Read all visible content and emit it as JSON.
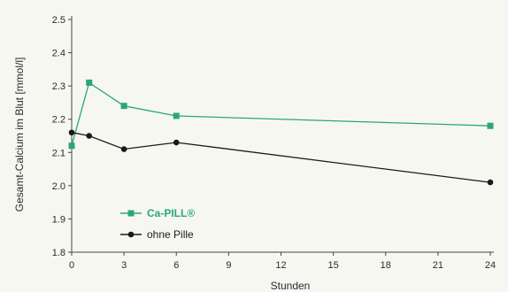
{
  "chart_data": {
    "type": "line",
    "xlabel": "Stunden",
    "ylabel": "Gesamt-Calcium im Blut [mmol/l]",
    "xlim": [
      0,
      24
    ],
    "ylim": [
      1.8,
      2.5
    ],
    "xticks": [
      0,
      3,
      6,
      9,
      12,
      15,
      18,
      21,
      24
    ],
    "yticks": [
      1.8,
      1.9,
      2.0,
      2.1,
      2.2,
      2.3,
      2.4,
      2.5
    ],
    "grid": false,
    "legend_position": "bottom-left",
    "series": [
      {
        "name": "Ca-PILL®",
        "color": "#2aa77a",
        "marker": "square",
        "x": [
          0,
          1,
          3,
          6,
          24
        ],
        "y": [
          2.12,
          2.31,
          2.24,
          2.21,
          2.18
        ]
      },
      {
        "name": "ohne Pille",
        "color": "#1a1a1a",
        "marker": "circle",
        "x": [
          0,
          1,
          3,
          6,
          24
        ],
        "y": [
          2.16,
          2.15,
          2.11,
          2.13,
          2.01
        ]
      }
    ]
  }
}
